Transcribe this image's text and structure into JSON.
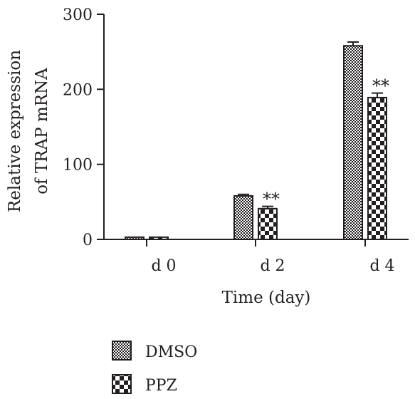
{
  "chart_data": {
    "type": "bar",
    "categories": [
      "d 0",
      "d 2",
      "d 4"
    ],
    "series": [
      {
        "name": "DMSO",
        "values": [
          3,
          58,
          258
        ],
        "errors": [
          0.5,
          2,
          5
        ],
        "pattern": "fine-check"
      },
      {
        "name": "PPZ",
        "values": [
          3,
          41,
          189
        ],
        "errors": [
          0.5,
          3,
          6
        ],
        "pattern": "coarse-check"
      }
    ],
    "annotations": [
      {
        "category": "d 2",
        "series": "PPZ",
        "text": "**"
      },
      {
        "category": "d 4",
        "series": "PPZ",
        "text": "**"
      }
    ],
    "xlabel": "Time (day)",
    "ylabel_lines": [
      "Relative expression",
      "of TRAP mRNA"
    ],
    "ylim": [
      0,
      300
    ],
    "yticks": [
      0,
      100,
      200,
      300
    ],
    "yticks_labels": [
      "0",
      "100",
      "200",
      "300"
    ],
    "grid": false,
    "legend_position": "bottom-left",
    "colors": {
      "ink": "#231f20",
      "background": "#ffffff"
    }
  }
}
